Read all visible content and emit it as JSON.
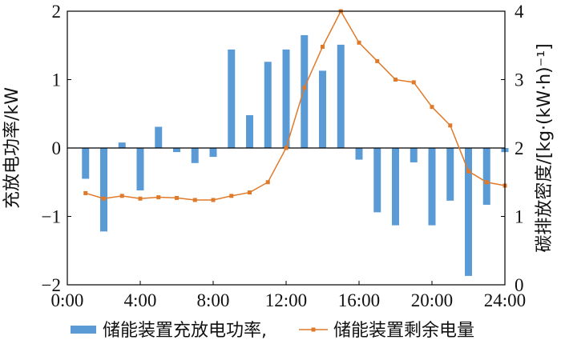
{
  "chart_data": {
    "type": "bar",
    "title": "",
    "xlabel": "",
    "ylabel": "充放电功率/kW",
    "y2label": "碳排放密度/[kg·(kW·h)⁻¹]",
    "x_ticks": [
      "0:00",
      "4:00",
      "8:00",
      "12:00",
      "16:00",
      "20:00",
      "24:00"
    ],
    "y_ticks": [
      "−2",
      "−1",
      "0",
      "1",
      "2"
    ],
    "y2_ticks": [
      "0",
      "1",
      "2",
      "3",
      "4"
    ],
    "xlim": [
      0,
      24
    ],
    "ylim": [
      -2,
      2
    ],
    "y2lim": [
      0,
      4
    ],
    "grid": false,
    "legend_position": "bottom",
    "hours": [
      1,
      2,
      3,
      4,
      5,
      6,
      7,
      8,
      9,
      10,
      11,
      12,
      13,
      14,
      15,
      16,
      17,
      18,
      19,
      20,
      21,
      22,
      23,
      24
    ],
    "series": [
      {
        "name": "储能装置充放电功率,",
        "kind": "bar",
        "axis": "left",
        "color": "#5b9bd5",
        "values": [
          -0.45,
          -1.22,
          0.08,
          -0.62,
          0.31,
          -0.06,
          -0.22,
          -0.13,
          1.44,
          0.48,
          1.26,
          1.44,
          1.65,
          1.13,
          1.51,
          -0.17,
          -0.94,
          -1.13,
          -0.21,
          -1.13,
          -0.77,
          -1.87,
          -0.83,
          -0.06
        ]
      },
      {
        "name": "储能装置剩余电量",
        "kind": "line",
        "axis": "right",
        "color": "#e07a2a",
        "values": [
          1.34,
          1.26,
          1.3,
          1.26,
          1.28,
          1.27,
          1.24,
          1.24,
          1.3,
          1.35,
          1.5,
          2.0,
          2.88,
          3.48,
          4.0,
          3.54,
          3.27,
          3.0,
          2.96,
          2.6,
          2.33,
          1.66,
          1.5,
          1.45
        ]
      }
    ]
  }
}
